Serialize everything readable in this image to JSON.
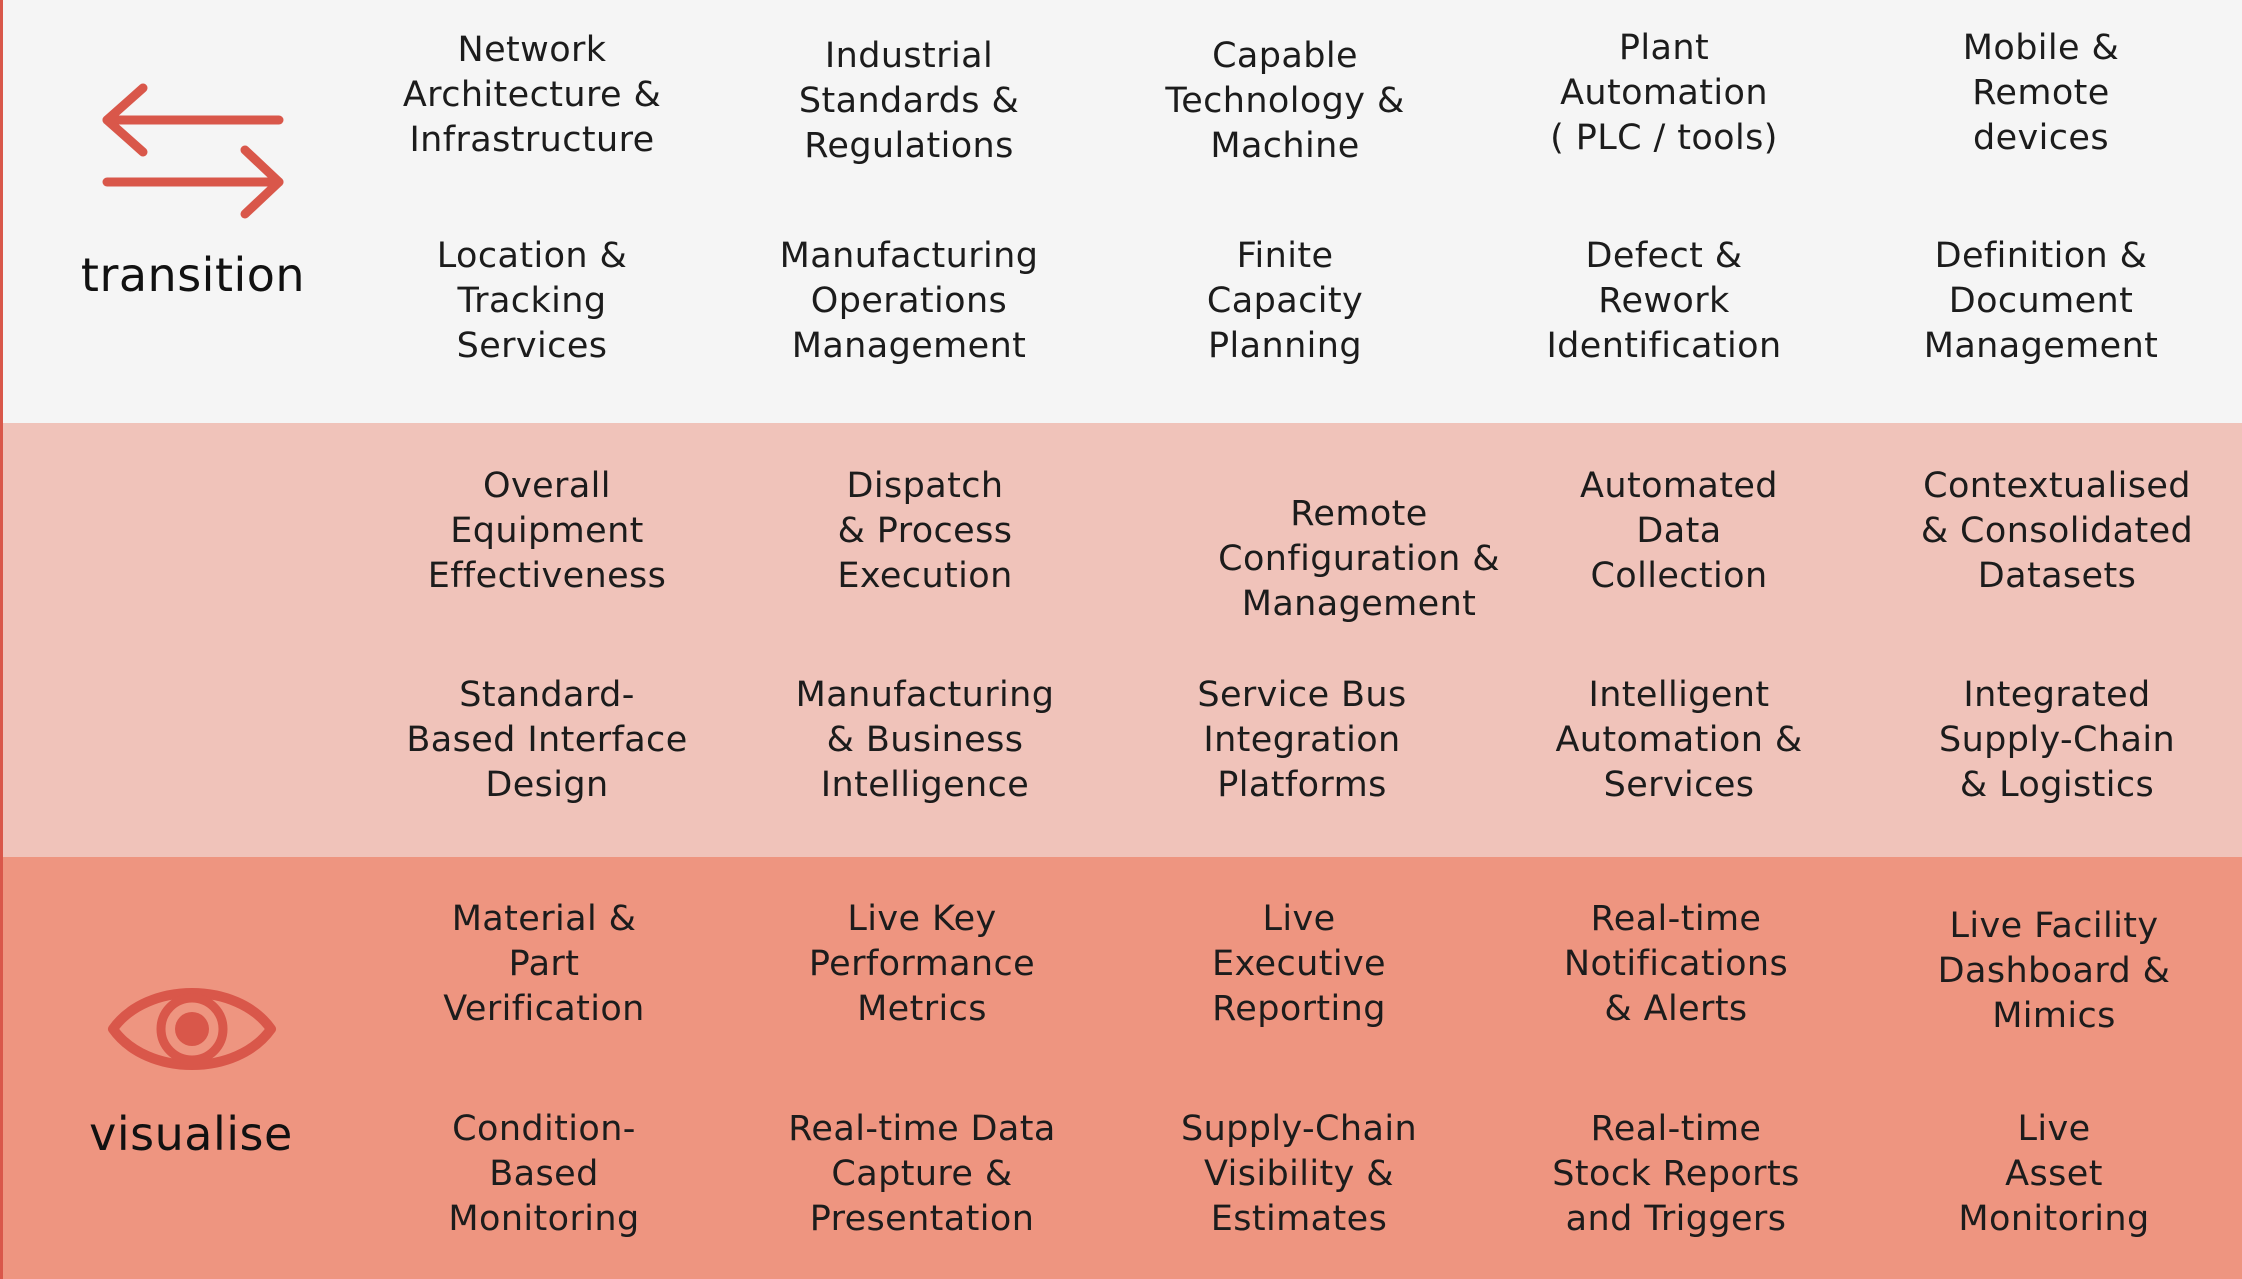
{
  "colors": {
    "accent": "#d9574a",
    "top_band": "#f5f5f5",
    "middle_band": "#f0c3ba",
    "bottom_band": "#ee9580"
  },
  "top": {
    "label": "transition",
    "icon": "swap-arrows-icon",
    "items": [
      "Network\nArchitecture &\nInfrastructure",
      "Industrial\nStandards &\nRegulations",
      "Capable\nTechnology &\nMachine",
      "Plant\nAutomation\n( PLC / tools)",
      "Mobile &\nRemote\ndevices",
      "Location &\nTracking\nServices",
      "Manufacturing\nOperations\nManagement",
      "Finite\nCapacity\nPlanning",
      "Defect &\nRework\nIdentification",
      "Definition &\nDocument\nManagement"
    ]
  },
  "middle": {
    "items": [
      "Overall\nEquipment\nEffectiveness",
      "Dispatch\n& Process\nExecution",
      "Remote\nConfiguration &\nManagement",
      "Automated\nData\nCollection",
      "Contextualised\n& Consolidated\nDatasets",
      "Standard-\nBased Interface\nDesign",
      "Manufacturing\n& Business\nIntelligence",
      "Service Bus\nIntegration\nPlatforms",
      "Intelligent\nAutomation &\nServices",
      "Integrated\nSupply-Chain\n& Logistics"
    ]
  },
  "bottom": {
    "label": "visualise",
    "icon": "eye-icon",
    "items": [
      "Material &\nPart\nVerification",
      "Live Key\nPerformance\nMetrics",
      "Live\nExecutive\nReporting",
      "Real-time\nNotifications\n& Alerts",
      "Live Facility\nDashboard &\nMimics",
      "Condition-\nBased\nMonitoring",
      "Real-time Data\nCapture &\nPresentation",
      "Supply-Chain\nVisibility &\nEstimates",
      "Real-time\nStock Reports\nand Triggers",
      "Live\nAsset\nMonitoring"
    ]
  }
}
